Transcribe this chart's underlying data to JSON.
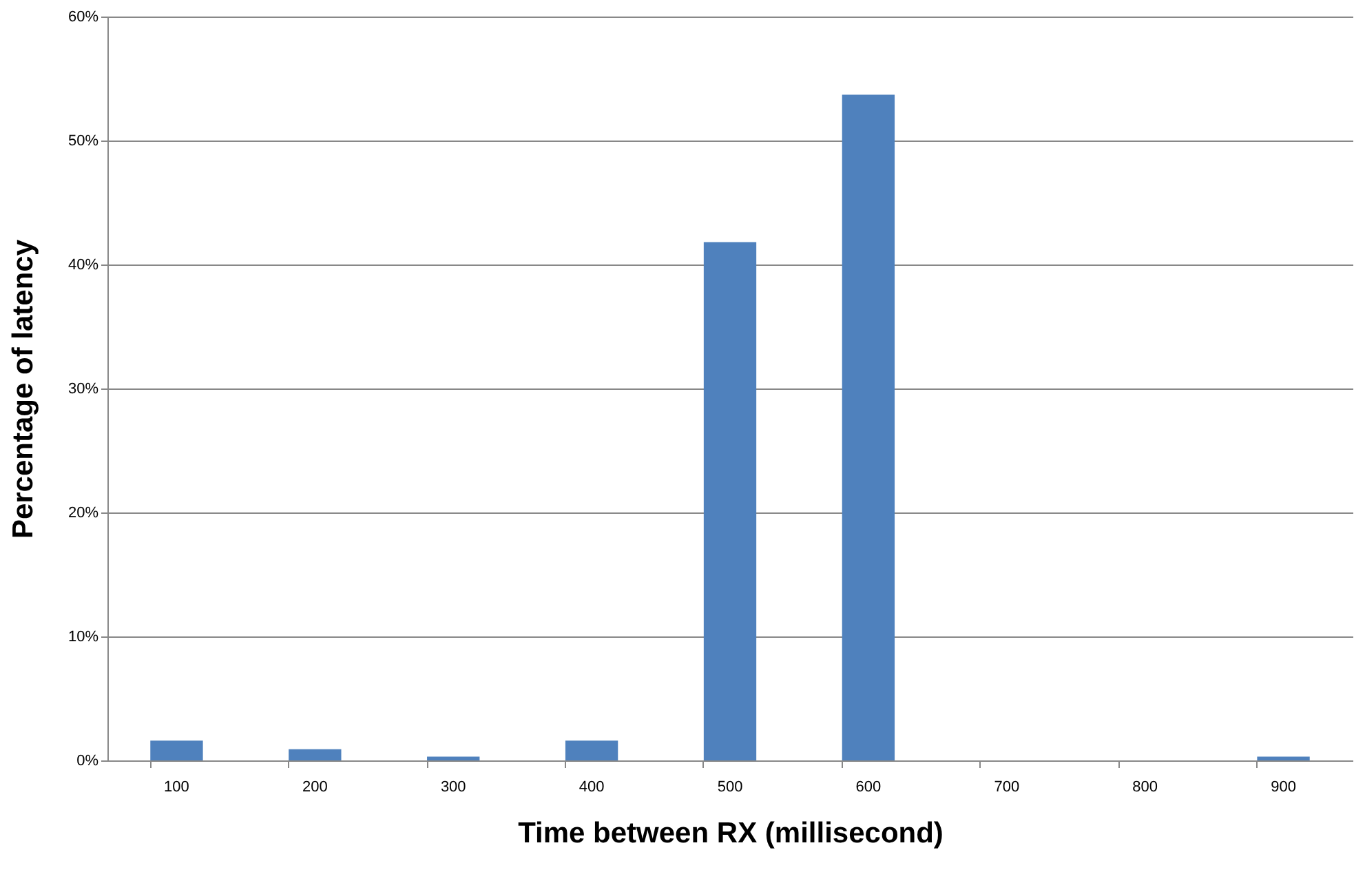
{
  "chart_data": {
    "type": "bar",
    "xlabel": "Time between RX (millisecond)",
    "ylabel": "Percentage of latency",
    "categories": [
      "100",
      "200",
      "300",
      "400",
      "500",
      "600",
      "700",
      "800",
      "900"
    ],
    "values": [
      1.6,
      0.9,
      0.3,
      1.6,
      41.8,
      53.7,
      0,
      0,
      0.3
    ],
    "color": "#4f81bd",
    "ylim": [
      0,
      60
    ],
    "yticks": [
      {
        "value": 0,
        "label": "0%"
      },
      {
        "value": 10,
        "label": "10%"
      },
      {
        "value": 20,
        "label": "20%"
      },
      {
        "value": 30,
        "label": "30%"
      },
      {
        "value": 40,
        "label": "40%"
      },
      {
        "value": 50,
        "label": "50%"
      },
      {
        "value": 60,
        "label": "60%"
      }
    ],
    "grid": "y"
  }
}
